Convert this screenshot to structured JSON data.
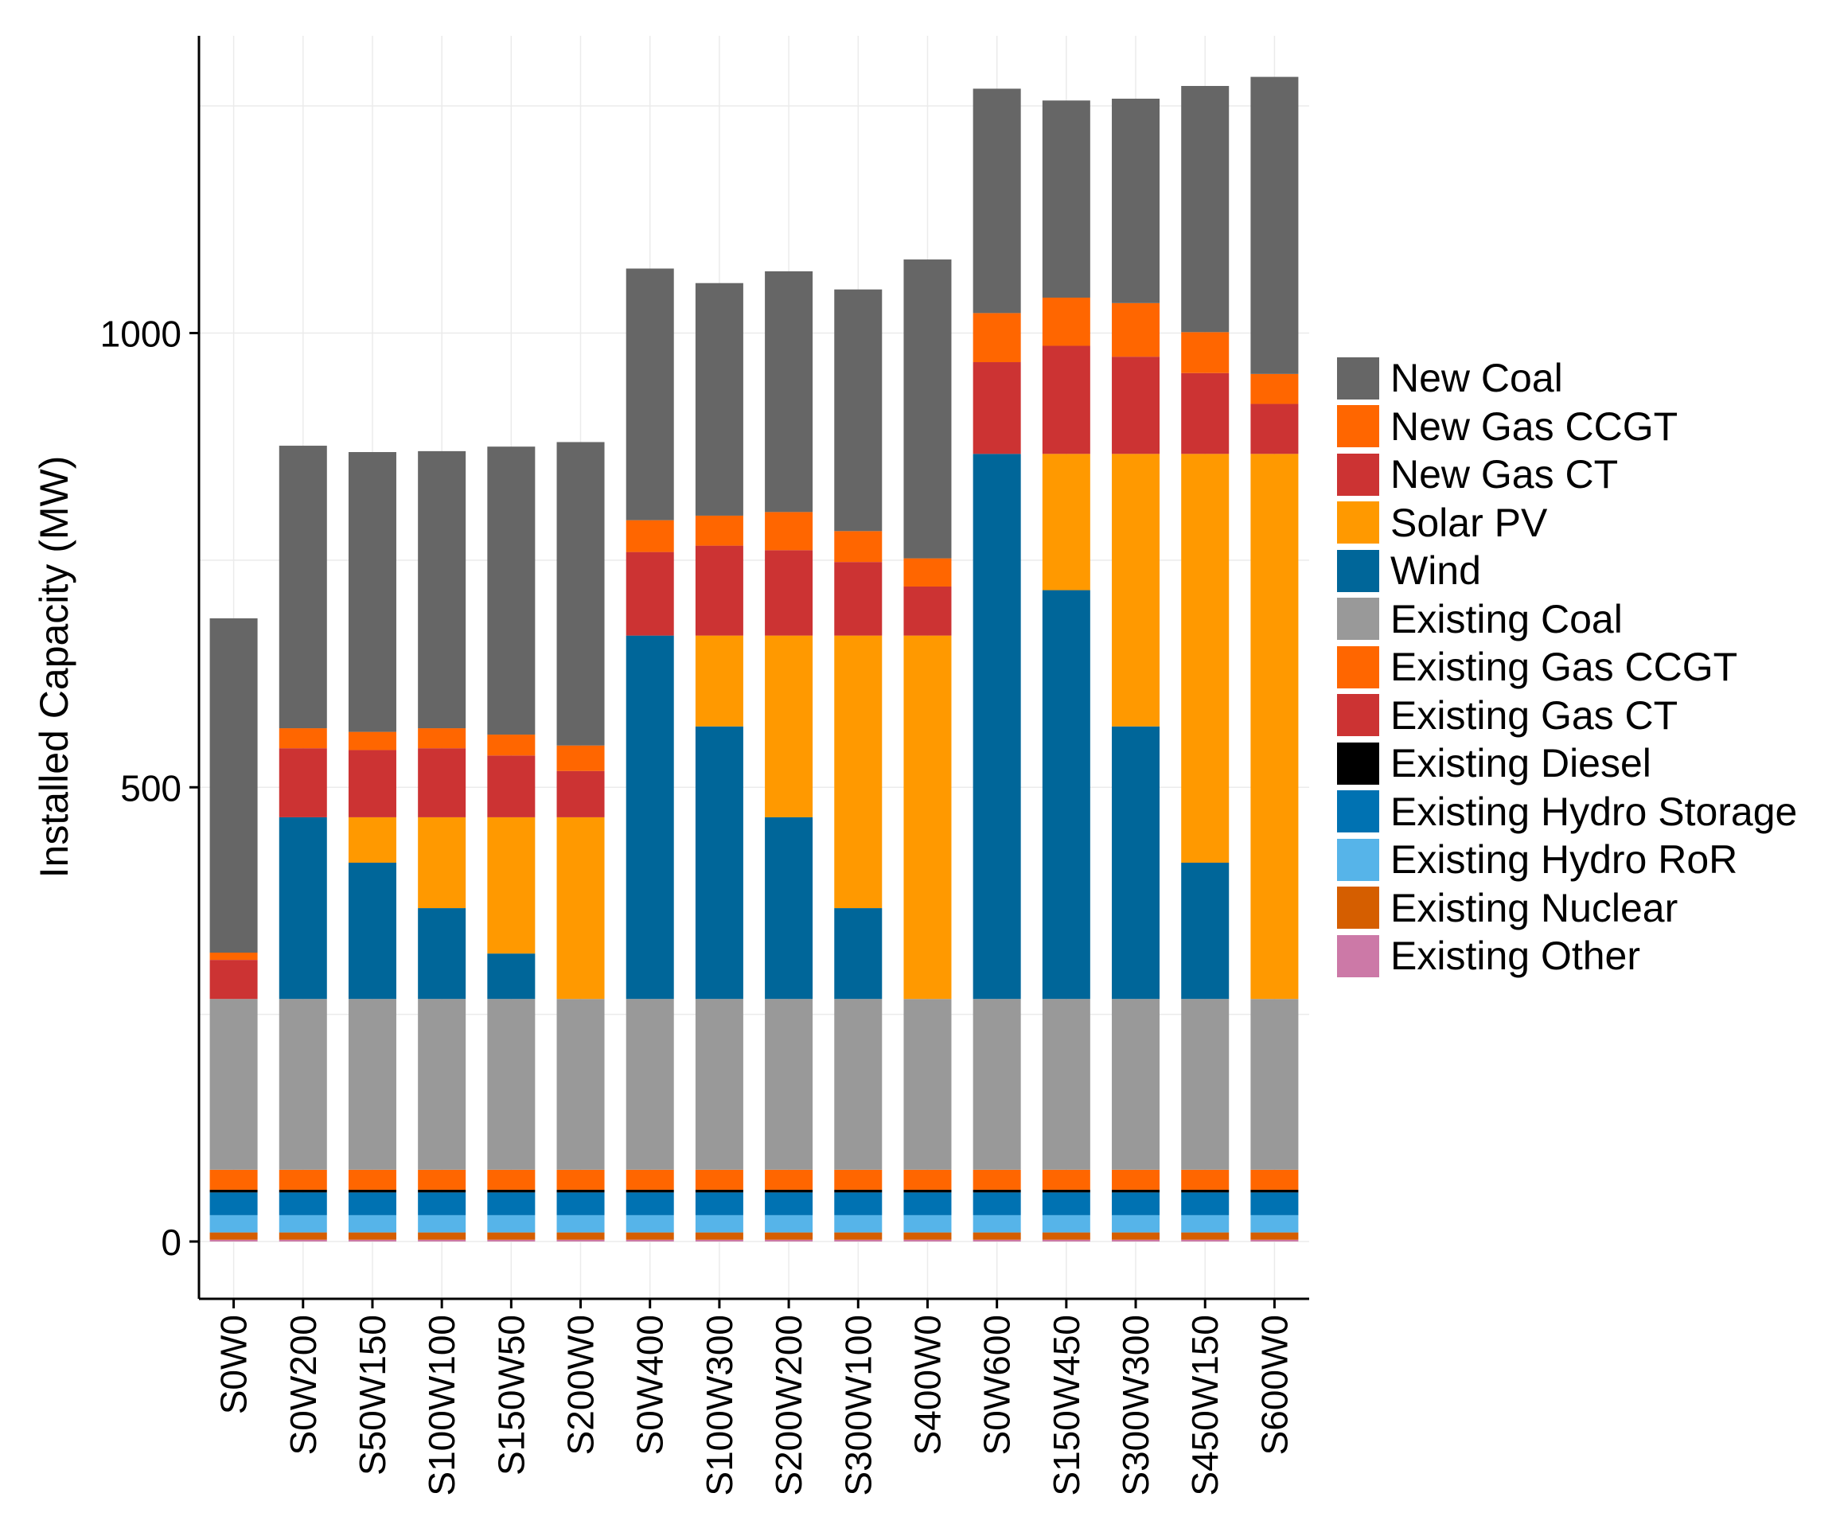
{
  "colors": {
    "background": "#ffffff",
    "grid": "#ebebeb",
    "axis": "#000000"
  },
  "chart_data": {
    "type": "bar",
    "stacked": true,
    "title": "",
    "xlabel": "",
    "ylabel": "Installed Capacity (MW)",
    "ylim": [
      -70,
      1340
    ],
    "yticks": [
      0,
      500,
      1000
    ],
    "grid": true,
    "legend_position": "right",
    "x_tick_rotation": -90,
    "categories": [
      "S0W0",
      "S0W200",
      "S50W150",
      "S100W100",
      "S150W50",
      "S200W0",
      "S0W400",
      "S100W300",
      "S200W200",
      "S300W100",
      "S400W0",
      "S0W600",
      "S150W450",
      "S300W300",
      "S450W150",
      "S600W0"
    ],
    "series": [
      {
        "name": "Existing Other",
        "color": "#CC79A7",
        "values": [
          2,
          2,
          2,
          2,
          2,
          2,
          2,
          2,
          2,
          2,
          2,
          2,
          2,
          2,
          2,
          2
        ]
      },
      {
        "name": "Existing Nuclear",
        "color": "#D55E00",
        "values": [
          8,
          8,
          8,
          8,
          8,
          8,
          8,
          8,
          8,
          8,
          8,
          8,
          8,
          8,
          8,
          8
        ]
      },
      {
        "name": "Existing Hydro RoR",
        "color": "#56B4E9",
        "values": [
          19,
          19,
          19,
          19,
          19,
          19,
          19,
          19,
          19,
          19,
          19,
          19,
          19,
          19,
          19,
          19
        ]
      },
      {
        "name": "Existing Hydro Storage",
        "color": "#0072B2",
        "values": [
          25,
          25,
          25,
          25,
          25,
          25,
          25,
          25,
          25,
          25,
          25,
          25,
          25,
          25,
          25,
          25
        ]
      },
      {
        "name": "Existing Diesel",
        "color": "#000000",
        "values": [
          3,
          3,
          3,
          3,
          3,
          3,
          3,
          3,
          3,
          3,
          3,
          3,
          3,
          3,
          3,
          3
        ]
      },
      {
        "name": "Existing Gas CT",
        "color": "#CC3333",
        "values": [
          0,
          0,
          0,
          0,
          0,
          0,
          0,
          0,
          0,
          0,
          0,
          0,
          0,
          0,
          0,
          0
        ]
      },
      {
        "name": "Existing Gas CCGT",
        "color": "#FF6600",
        "values": [
          22,
          22,
          22,
          22,
          22,
          22,
          22,
          22,
          22,
          22,
          22,
          22,
          22,
          22,
          22,
          22
        ]
      },
      {
        "name": "Existing Coal",
        "color": "#999999",
        "values": [
          188,
          188,
          188,
          188,
          188,
          188,
          188,
          188,
          188,
          188,
          188,
          188,
          188,
          188,
          188,
          188
        ]
      },
      {
        "name": "Wind",
        "color": "#006699",
        "values": [
          0,
          200,
          150,
          100,
          50,
          0,
          400,
          300,
          200,
          100,
          0,
          600,
          450,
          300,
          150,
          0
        ]
      },
      {
        "name": "Solar PV",
        "color": "#FF9900",
        "values": [
          0,
          0,
          50,
          100,
          150,
          200,
          0,
          100,
          200,
          300,
          400,
          0,
          150,
          300,
          450,
          600
        ]
      },
      {
        "name": "New Gas CT",
        "color": "#CC3333",
        "values": [
          43,
          76,
          74,
          76,
          68,
          51,
          92,
          99,
          94,
          81,
          54,
          101,
          119,
          107,
          89,
          55
        ]
      },
      {
        "name": "New Gas CCGT",
        "color": "#FF6600",
        "values": [
          8,
          22,
          20,
          22,
          23,
          28,
          35,
          33,
          42,
          34,
          31,
          54,
          53,
          59,
          45,
          33
        ]
      },
      {
        "name": "New Coal",
        "color": "#666666",
        "values": [
          368,
          311,
          308,
          305,
          317,
          334,
          277,
          256,
          265,
          266,
          329,
          247,
          217,
          225,
          271,
          327
        ]
      }
    ],
    "legend": [
      "New Coal",
      "New Gas CCGT",
      "New Gas CT",
      "Solar PV",
      "Wind",
      "Existing Coal",
      "Existing Gas CCGT",
      "Existing Gas CT",
      "Existing Diesel",
      "Existing Hydro Storage",
      "Existing Hydro RoR",
      "Existing Nuclear",
      "Existing Other"
    ]
  }
}
